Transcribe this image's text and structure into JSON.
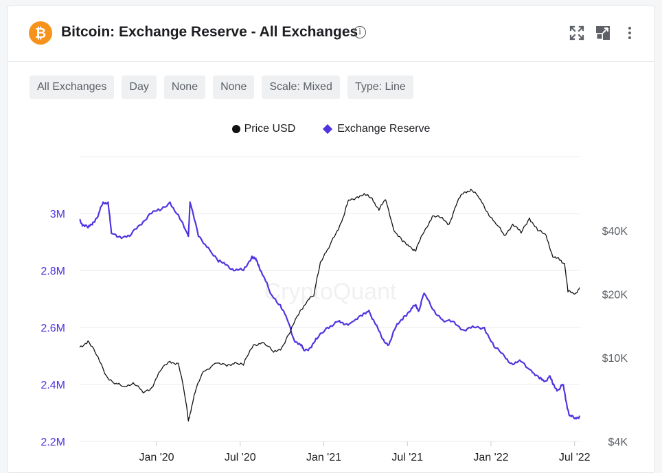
{
  "header": {
    "logo_glyph": "₿",
    "title": "Bitcoin: Exchange Reserve - All Exchanges",
    "icons": [
      "info-icon",
      "fullscreen-icon",
      "expand-icon",
      "more-vertical-icon"
    ]
  },
  "toolbar": {
    "chips": [
      "All Exchanges",
      "Day",
      "None",
      "None",
      "Scale: Mixed",
      "Type: Line"
    ]
  },
  "watermark": "CryptoQuant",
  "colors": {
    "price": "#111111",
    "reserve": "#4f35e0",
    "grid": "#e6e8eb",
    "brand": "#f7931a"
  },
  "chart_data": {
    "type": "line",
    "grid": true,
    "legend_position": "top-center",
    "x_ticks": [
      "Jan '20",
      "Jul '20",
      "Jan '21",
      "Jul '21",
      "Jan '22",
      "Jul '22"
    ],
    "x_tick_values": [
      2020.0,
      2020.5,
      2021.0,
      2021.5,
      2022.0,
      2022.5
    ],
    "xlim": [
      2019.54,
      2022.53
    ],
    "left_axis": {
      "ticks": [
        "2.2M",
        "2.4M",
        "2.6M",
        "2.8M",
        "3M"
      ],
      "tick_values": [
        2200000,
        2400000,
        2600000,
        2800000,
        3000000
      ],
      "ylim": [
        2200000,
        3200000
      ],
      "color": "#4f35e0"
    },
    "right_axis": {
      "scale": "log",
      "ticks": [
        "$4K",
        "$10K",
        "$20K",
        "$40K"
      ],
      "tick_values": [
        4000,
        10000,
        20000,
        40000
      ],
      "ylim": [
        4000,
        90000
      ],
      "color": "#5d6167"
    },
    "series": [
      {
        "name": "Price USD",
        "axis": "right",
        "color": "#111111",
        "x": [
          2019.54,
          2019.59,
          2019.64,
          2019.7,
          2019.75,
          2019.8,
          2019.86,
          2019.92,
          2019.97,
          2020.02,
          2020.08,
          2020.13,
          2020.19,
          2020.2,
          2020.23,
          2020.28,
          2020.35,
          2020.42,
          2020.47,
          2020.52,
          2020.58,
          2020.63,
          2020.7,
          2020.75,
          2020.8,
          2020.86,
          2020.9,
          2020.94,
          2020.98,
          2021.03,
          2021.08,
          2021.12,
          2021.15,
          2021.2,
          2021.25,
          2021.29,
          2021.33,
          2021.37,
          2021.42,
          2021.47,
          2021.52,
          2021.55,
          2021.6,
          2021.65,
          2021.7,
          2021.75,
          2021.8,
          2021.84,
          2021.88,
          2021.93,
          2021.98,
          2022.03,
          2022.08,
          2022.13,
          2022.18,
          2022.23,
          2022.28,
          2022.33,
          2022.37,
          2022.41,
          2022.44,
          2022.46,
          2022.5,
          2022.53
        ],
        "y": [
          11200,
          12000,
          10300,
          8200,
          7500,
          7300,
          7600,
          6800,
          7200,
          8600,
          9600,
          9400,
          5000,
          5400,
          6800,
          8600,
          9400,
          9100,
          9500,
          9200,
          11500,
          11800,
          10600,
          11200,
          13200,
          16800,
          18500,
          19600,
          28500,
          33000,
          40000,
          47000,
          56000,
          58000,
          59000,
          57000,
          50000,
          56000,
          40000,
          35500,
          33500,
          32000,
          39500,
          47000,
          46000,
          43000,
          55000,
          61000,
          63000,
          57000,
          49000,
          43000,
          38000,
          43000,
          39000,
          46000,
          40000,
          38000,
          30000,
          29000,
          28000,
          20500,
          20000,
          21500
        ]
      },
      {
        "name": "Exchange Reserve",
        "axis": "left",
        "color": "#4f35e0",
        "x": [
          2019.54,
          2019.56,
          2019.59,
          2019.62,
          2019.65,
          2019.68,
          2019.71,
          2019.73,
          2019.78,
          2019.84,
          2019.9,
          2019.96,
          2020.02,
          2020.08,
          2020.14,
          2020.19,
          2020.2,
          2020.25,
          2020.31,
          2020.37,
          2020.42,
          2020.47,
          2020.52,
          2020.57,
          2020.59,
          2020.61,
          2020.64,
          2020.68,
          2020.74,
          2020.78,
          2020.82,
          2020.86,
          2020.88,
          2020.92,
          2020.96,
          2021.02,
          2021.08,
          2021.12,
          2021.17,
          2021.23,
          2021.27,
          2021.31,
          2021.35,
          2021.39,
          2021.43,
          2021.48,
          2021.52,
          2021.55,
          2021.57,
          2021.6,
          2021.66,
          2021.72,
          2021.78,
          2021.84,
          2021.9,
          2021.96,
          2022.02,
          2022.08,
          2022.13,
          2022.18,
          2022.24,
          2022.29,
          2022.32,
          2022.35,
          2022.37,
          2022.4,
          2022.43,
          2022.45,
          2022.47,
          2022.5,
          2022.53
        ],
        "y": [
          2980000,
          2960000,
          2950000,
          2970000,
          2990000,
          3040000,
          3040000,
          2930000,
          2920000,
          2920000,
          2960000,
          3000000,
          3010000,
          3040000,
          2980000,
          2920000,
          3040000,
          2920000,
          2880000,
          2830000,
          2820000,
          2800000,
          2800000,
          2850000,
          2840000,
          2820000,
          2780000,
          2720000,
          2680000,
          2630000,
          2560000,
          2540000,
          2520000,
          2530000,
          2560000,
          2600000,
          2620000,
          2610000,
          2620000,
          2640000,
          2660000,
          2610000,
          2560000,
          2540000,
          2600000,
          2640000,
          2660000,
          2680000,
          2660000,
          2720000,
          2660000,
          2620000,
          2620000,
          2590000,
          2600000,
          2600000,
          2530000,
          2500000,
          2470000,
          2480000,
          2450000,
          2420000,
          2410000,
          2430000,
          2400000,
          2380000,
          2400000,
          2340000,
          2290000,
          2280000,
          2290000
        ]
      }
    ]
  }
}
